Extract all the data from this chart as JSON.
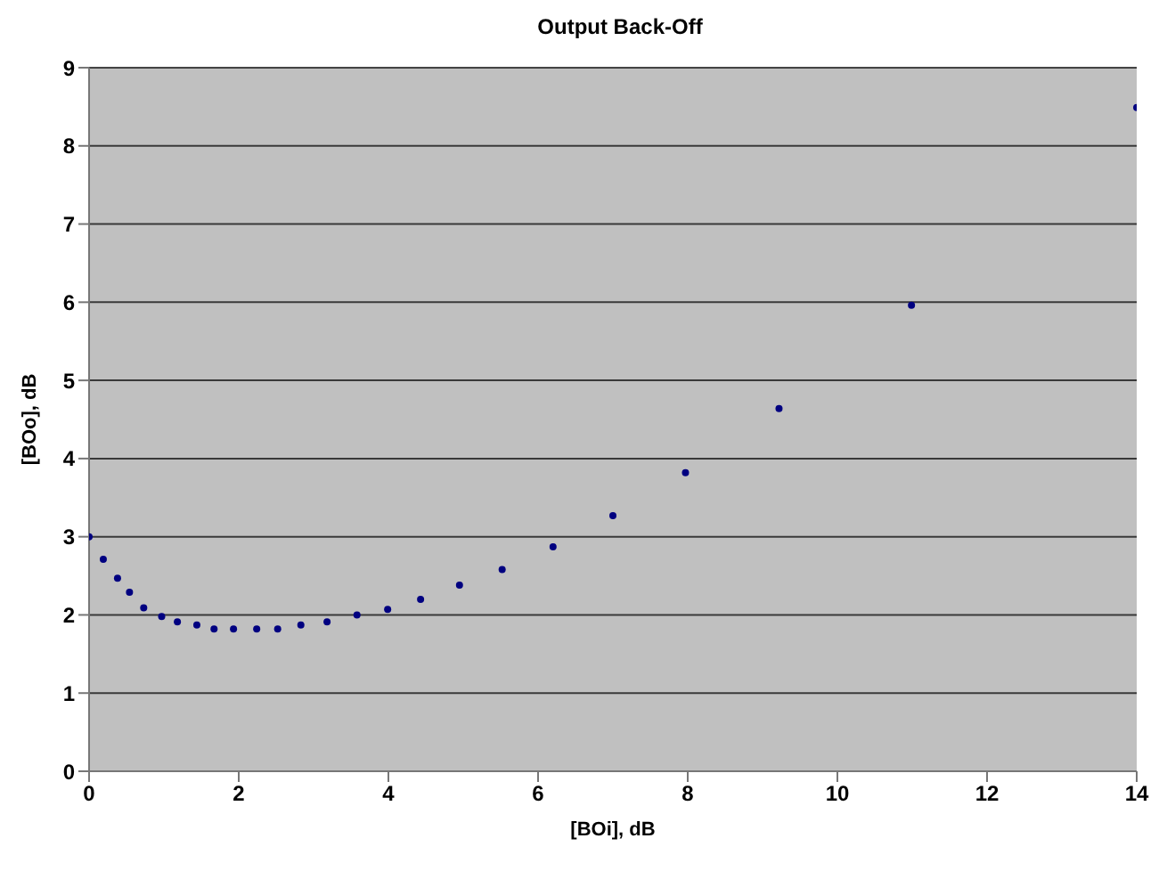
{
  "chart_data": {
    "type": "scatter",
    "title": "Output Back-Off",
    "xlabel": "[BOi], dB",
    "ylabel": "[BOo], dB",
    "x": [
      0,
      0.19,
      0.38,
      0.54,
      0.73,
      0.97,
      1.18,
      1.44,
      1.67,
      1.93,
      2.24,
      2.52,
      2.83,
      3.18,
      3.58,
      3.99,
      4.43,
      4.95,
      5.52,
      6.2,
      7.0,
      7.97,
      9.22,
      10.99,
      14
    ],
    "values": [
      3.0,
      2.71,
      2.47,
      2.29,
      2.09,
      1.98,
      1.91,
      1.87,
      1.82,
      1.82,
      1.82,
      1.82,
      1.87,
      1.91,
      2.0,
      2.07,
      2.2,
      2.38,
      2.58,
      2.87,
      3.27,
      3.82,
      4.64,
      5.96,
      8.49
    ],
    "color": "#000080",
    "marker": "circle",
    "grid": "y",
    "xlim": [
      0,
      14
    ],
    "xticks": [
      0,
      2,
      4,
      6,
      8,
      10,
      12,
      14
    ],
    "ylim": [
      0,
      9
    ],
    "yticks": [
      0,
      1,
      2,
      3,
      4,
      5,
      6,
      7,
      8,
      9
    ]
  }
}
